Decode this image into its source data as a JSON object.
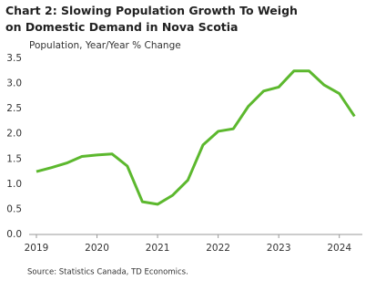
{
  "chart_data": {
    "type": "line",
    "title": "Chart 2: Slowing Population Growth To Weigh on Domestic Demand in Nova Scotia",
    "subtitle": "Population, Year/Year % Change",
    "source": "Source: Statistics Canada, TD Economics.",
    "x": [
      2019,
      2019.25,
      2019.5,
      2019.75,
      2020,
      2020.25,
      2020.5,
      2020.75,
      2021,
      2021.25,
      2021.5,
      2021.75,
      2022,
      2022.25,
      2022.5,
      2022.75,
      2023,
      2023.25,
      2023.5,
      2023.75,
      2024,
      2024.25
    ],
    "series": [
      {
        "color": "#5cb82e",
        "values": [
          1.25,
          1.33,
          1.42,
          1.55,
          1.58,
          1.6,
          1.36,
          0.65,
          0.6,
          0.78,
          1.08,
          1.78,
          2.05,
          2.1,
          2.55,
          2.85,
          2.93,
          3.25,
          3.25,
          2.97,
          2.8,
          2.35
        ]
      }
    ],
    "xlim": [
      2018.88,
      2024.38
    ],
    "xticks": [
      2019,
      2020,
      2021,
      2022,
      2023,
      2024
    ],
    "ylim": [
      0,
      3.5
    ],
    "yticks": [
      {
        "value": 0,
        "label": "0.0"
      },
      0.5,
      {
        "value": 1,
        "label": "1.0"
      },
      1.5,
      {
        "value": 2,
        "label": "2.0"
      },
      2.5,
      {
        "value": 3,
        "label": "3.0"
      },
      3.5
    ],
    "grid": false
  }
}
